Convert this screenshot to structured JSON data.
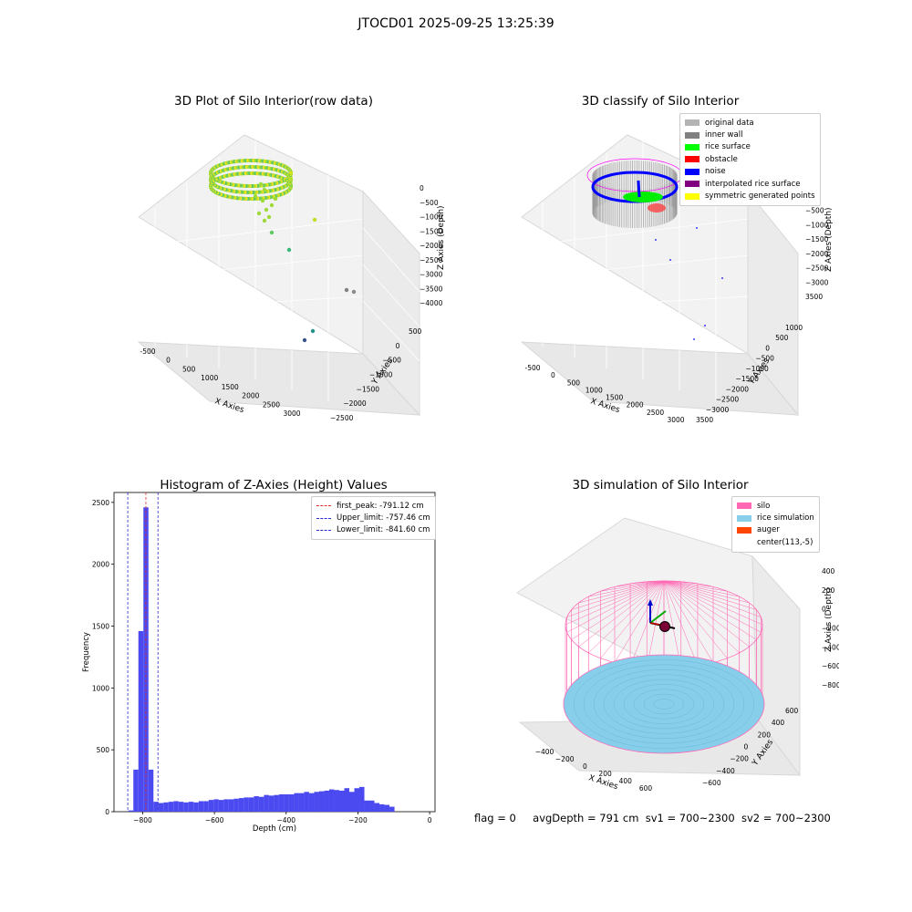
{
  "figure": {
    "suptitle": "JTOCD01 2025-09-25 13:25:39",
    "status": {
      "flag": "flag = 0",
      "avg_depth": "avgDepth = 791 cm",
      "sv1": "sv1 = 700~2300",
      "sv2": "sv2 = 700~2300"
    }
  },
  "colors": {
    "hist_bar": "#4a4af0",
    "first_peak": "#e03030",
    "limit": "#2a2ad0",
    "silo": "#ff69b4",
    "rice": "#87ceeb",
    "auger": "#ff4500"
  },
  "chart_data": [
    {
      "type": "scatter",
      "kind": "3d",
      "title": "3D Plot of Silo Interior(row data)",
      "xlabel": "X Axies",
      "ylabel": "Y Axies",
      "zlabel": "Z Axies (Depth)",
      "xticks": [
        "-500",
        "0",
        "500",
        "1000",
        "1500",
        "2000",
        "2500",
        "3000"
      ],
      "yticks": [
        "500",
        "0",
        "−500",
        "−1000",
        "−1500",
        "−2000",
        "−2500"
      ],
      "zticks": [
        "0",
        "−500",
        "−1000",
        "−1500",
        "−2000",
        "−2500",
        "−3000",
        "−3500",
        "−4000"
      ],
      "colormap": "viridis"
    },
    {
      "type": "scatter",
      "kind": "3d",
      "title": "3D classify of Silo Interior",
      "xlabel": "X Axies",
      "ylabel": "Y Axies",
      "zlabel": "Z Axies (Depth)",
      "xticks": [
        "-500",
        "0",
        "500",
        "1000",
        "1500",
        "2000",
        "2500",
        "3000"
      ],
      "yticks": [
        "1000",
        "500",
        "0",
        "−500",
        "−1000",
        "−1500",
        "−2000",
        "−2500",
        "−3000",
        "3500"
      ],
      "zticks": [
        "0",
        "−500",
        "−1000",
        "−1500",
        "−2000",
        "−2500",
        "−3000",
        "3500"
      ],
      "legend": [
        {
          "label": "original data",
          "color": "#b4b4b4"
        },
        {
          "label": "inner wall",
          "color": "#808080"
        },
        {
          "label": "rice surface",
          "color": "#00ff00"
        },
        {
          "label": "obstacle",
          "color": "#ff0000"
        },
        {
          "label": "noise",
          "color": "#0000ff"
        },
        {
          "label": "interpolated rice surface",
          "color": "#800080"
        },
        {
          "label": "symmetric generated points",
          "color": "#ffff00"
        }
      ]
    },
    {
      "type": "bar",
      "title": "Histogram of Z-Axies (Height) Values",
      "xlabel": "Depth (cm)",
      "ylabel": "Frequency",
      "xlim": [
        -880,
        15
      ],
      "ylim": [
        0,
        2580
      ],
      "xticks": [
        -800,
        -600,
        -400,
        -200,
        0
      ],
      "yticks": [
        0,
        500,
        1000,
        1500,
        2000,
        2500
      ],
      "bin_start": -840,
      "bin_width": 14,
      "values": [
        10,
        340,
        1460,
        2460,
        340,
        80,
        70,
        75,
        80,
        85,
        80,
        75,
        80,
        75,
        85,
        85,
        95,
        100,
        95,
        100,
        100,
        105,
        110,
        115,
        115,
        125,
        120,
        135,
        130,
        135,
        140,
        140,
        140,
        150,
        150,
        160,
        150,
        160,
        165,
        170,
        180,
        175,
        170,
        190,
        160,
        190,
        200,
        90,
        90,
        70,
        60,
        55,
        40
      ],
      "vlines": [
        {
          "label": "first_peak: -791.12 cm",
          "x": -791.12,
          "color": "#e03030"
        },
        {
          "label": "Upper_limit: -757.46 cm",
          "x": -757.46,
          "color": "#2a2ad0"
        },
        {
          "label": "Lower_limit: -841.60 cm",
          "x": -841.6,
          "color": "#2a2ad0"
        }
      ],
      "legend_position": "top-right"
    },
    {
      "type": "scatter",
      "kind": "3d",
      "title": "3D simulation of Silo Interior",
      "xlabel": "X Axies",
      "ylabel": "Y Axies",
      "zlabel": "Z Axies (Depth)",
      "xticks": [
        "−400",
        "−200",
        "0",
        "200",
        "400",
        "600"
      ],
      "yticks": [
        "600",
        "400",
        "200",
        "0",
        "−200",
        "−400",
        "−600"
      ],
      "zticks": [
        "400",
        "200",
        "0",
        "−200",
        "−400",
        "−600",
        "−800"
      ],
      "legend": [
        {
          "label": "silo",
          "color": "#ff69b4"
        },
        {
          "label": "rice simulation",
          "color": "#87ceeb"
        },
        {
          "label": "auger",
          "color": "#ff4500"
        },
        {
          "label": "center(113,-5)",
          "color": ""
        }
      ]
    }
  ]
}
